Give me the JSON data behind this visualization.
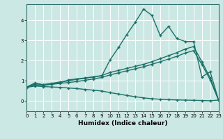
{
  "xlabel": "Humidex (Indice chaleur)",
  "xlim": [
    0,
    23
  ],
  "ylim": [
    -0.5,
    4.8
  ],
  "xticks": [
    0,
    1,
    2,
    3,
    4,
    5,
    6,
    7,
    8,
    9,
    10,
    11,
    12,
    13,
    14,
    15,
    16,
    17,
    18,
    19,
    20,
    21,
    22,
    23
  ],
  "yticks": [
    0,
    1,
    2,
    3,
    4
  ],
  "bg_color": "#cce8e4",
  "grid_color": "#ffffff",
  "line_color": "#1a7068",
  "line_width": 1.0,
  "marker": "+",
  "marker_size": 3.5,
  "series": {
    "line1_x": [
      0,
      1,
      2,
      3,
      4,
      5,
      6,
      7,
      8,
      9,
      10,
      11,
      12,
      13,
      14,
      15,
      16,
      17,
      18,
      19,
      20,
      21,
      22,
      23
    ],
    "line1_y": [
      0.7,
      0.9,
      0.8,
      0.85,
      0.9,
      1.05,
      1.1,
      1.15,
      1.2,
      1.25,
      2.05,
      2.65,
      3.3,
      3.9,
      4.55,
      4.25,
      3.25,
      3.7,
      3.1,
      2.95,
      2.95,
      1.2,
      1.45,
      0.05
    ],
    "line2_x": [
      0,
      1,
      2,
      3,
      4,
      5,
      6,
      7,
      8,
      9,
      10,
      11,
      12,
      13,
      14,
      15,
      16,
      17,
      18,
      19,
      20,
      21,
      22,
      23
    ],
    "line2_y": [
      0.68,
      0.85,
      0.82,
      0.88,
      0.95,
      1.0,
      1.08,
      1.13,
      1.2,
      1.27,
      1.42,
      1.52,
      1.62,
      1.72,
      1.82,
      1.95,
      2.1,
      2.25,
      2.4,
      2.58,
      2.7,
      1.95,
      1.15,
      0.05
    ],
    "line3_x": [
      0,
      1,
      2,
      3,
      4,
      5,
      6,
      7,
      8,
      9,
      10,
      11,
      12,
      13,
      14,
      15,
      16,
      17,
      18,
      19,
      20,
      21,
      22,
      23
    ],
    "line3_y": [
      0.68,
      0.8,
      0.78,
      0.83,
      0.88,
      0.92,
      0.97,
      1.03,
      1.1,
      1.17,
      1.3,
      1.4,
      1.5,
      1.6,
      1.7,
      1.82,
      1.95,
      2.08,
      2.22,
      2.38,
      2.5,
      1.82,
      1.05,
      0.05
    ],
    "line4_x": [
      0,
      1,
      2,
      3,
      4,
      5,
      6,
      7,
      8,
      9,
      10,
      11,
      12,
      13,
      14,
      15,
      16,
      17,
      18,
      19,
      20,
      21,
      22,
      23
    ],
    "line4_y": [
      0.68,
      0.75,
      0.72,
      0.7,
      0.68,
      0.65,
      0.62,
      0.58,
      0.54,
      0.5,
      0.42,
      0.35,
      0.28,
      0.22,
      0.16,
      0.12,
      0.09,
      0.07,
      0.06,
      0.05,
      0.04,
      0.03,
      0.02,
      0.05
    ]
  }
}
